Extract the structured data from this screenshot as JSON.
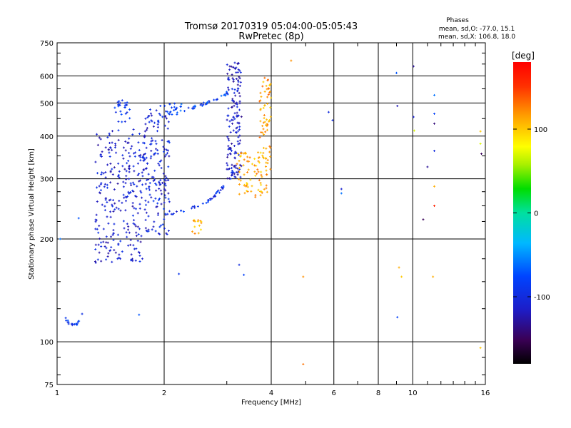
{
  "chart_data": {
    "type": "scatter",
    "title": "Tromsø 20170319 05:04:00-05:05:43",
    "subtitle": "RwPretec (8p)",
    "phases_box": {
      "title": "Phases",
      "line_o": "mean, sd,O: -77.0, 15.1",
      "line_x": "mean, sd,X: 106.8, 18.0"
    },
    "xlabel": "Frequency [MHz]",
    "ylabel": "Stationary phase Virtual Height [km]",
    "x_scale": "log",
    "y_scale": "log",
    "xlim": [
      1,
      16
    ],
    "ylim": [
      75,
      750
    ],
    "x_ticks": [
      {
        "v": 1,
        "label": "1"
      },
      {
        "v": 2,
        "label": "2"
      },
      {
        "v": 4,
        "label": "4"
      },
      {
        "v": 6,
        "label": "6"
      },
      {
        "v": 8,
        "label": "8"
      },
      {
        "v": 10,
        "label": "10"
      },
      {
        "v": 16,
        "label": "16"
      }
    ],
    "y_ticks": [
      {
        "v": 75,
        "label": "75"
      },
      {
        "v": 100,
        "label": "100"
      },
      {
        "v": 200,
        "label": "200"
      },
      {
        "v": 300,
        "label": "300"
      },
      {
        "v": 400,
        "label": "400"
      },
      {
        "v": 500,
        "label": "500"
      },
      {
        "v": 600,
        "label": "600"
      },
      {
        "v": 750,
        "label": "750"
      }
    ],
    "grid": true,
    "colorbar": {
      "label": "[deg]",
      "range": [
        -180,
        180
      ],
      "ticks": [
        {
          "v": 100,
          "label": "100"
        },
        {
          "v": 0,
          "label": "0"
        },
        {
          "v": -100,
          "label": "-100"
        }
      ]
    },
    "clusters": [
      {
        "name": "e_hook",
        "shape": "curve",
        "x": [
          1.05,
          1.06,
          1.08,
          1.1,
          1.12,
          1.14,
          1.16,
          1.18
        ],
        "y": [
          120,
          116,
          113,
          112,
          112,
          113,
          116,
          121
        ],
        "phase": -85,
        "n": 18
      },
      {
        "name": "low_f_cluster",
        "shape": "blob",
        "xr": [
          1.28,
          1.75
        ],
        "yr": [
          170,
          420
        ],
        "phase": -110,
        "n": 260
      },
      {
        "name": "mid_cluster",
        "shape": "blob",
        "xr": [
          1.75,
          2.08
        ],
        "yr": [
          205,
          480
        ],
        "phase": -105,
        "n": 170
      },
      {
        "name": "upper_arc_a",
        "shape": "blob",
        "xr": [
          1.45,
          1.6
        ],
        "yr": [
          440,
          510
        ],
        "phase": -90,
        "n": 26
      },
      {
        "name": "upper_arc_b",
        "shape": "blob",
        "xr": [
          1.95,
          2.3
        ],
        "yr": [
          460,
          500
        ],
        "phase": -80,
        "n": 24
      },
      {
        "name": "upper_arc_c",
        "shape": "curve",
        "x": [
          2.3,
          2.5,
          2.7,
          2.9,
          3.05
        ],
        "y": [
          478,
          490,
          505,
          520,
          540
        ],
        "phase": -82,
        "n": 30
      },
      {
        "name": "o_trace",
        "shape": "curve",
        "x": [
          2.0,
          2.3,
          2.6,
          2.8,
          3.0,
          3.15
        ],
        "y": [
          236,
          242,
          255,
          270,
          290,
          320
        ],
        "phase": -95,
        "n": 45
      },
      {
        "name": "o_cusp",
        "shape": "blob",
        "xr": [
          3.0,
          3.3
        ],
        "yr": [
          300,
          660
        ],
        "phase": -115,
        "n": 150
      },
      {
        "name": "x_trace",
        "shape": "blob",
        "xr": [
          3.2,
          3.9
        ],
        "yr": [
          265,
          360
        ],
        "phase": 110,
        "n": 80
      },
      {
        "name": "x_cusp",
        "shape": "blob",
        "xr": [
          3.7,
          4.0
        ],
        "yr": [
          330,
          600
        ],
        "phase": 115,
        "n": 60
      },
      {
        "name": "orange_patch",
        "shape": "blob",
        "xr": [
          2.4,
          2.55
        ],
        "yr": [
          205,
          228
        ],
        "phase": 110,
        "n": 14
      }
    ],
    "isolated_points": [
      {
        "x": 4.55,
        "y": 665,
        "phase": 120
      },
      {
        "x": 3.98,
        "y": 320,
        "phase": 120
      },
      {
        "x": 4.92,
        "y": 155,
        "phase": 120
      },
      {
        "x": 4.92,
        "y": 86,
        "phase": 130
      },
      {
        "x": 5.8,
        "y": 470,
        "phase": -100
      },
      {
        "x": 5.95,
        "y": 445,
        "phase": -100
      },
      {
        "x": 6.3,
        "y": 280,
        "phase": -110
      },
      {
        "x": 6.3,
        "y": 272,
        "phase": -60
      },
      {
        "x": 2.2,
        "y": 158,
        "phase": -90
      },
      {
        "x": 1.7,
        "y": 120,
        "phase": -70
      },
      {
        "x": 3.25,
        "y": 168,
        "phase": -100
      },
      {
        "x": 3.35,
        "y": 157,
        "phase": -80
      },
      {
        "x": 9.0,
        "y": 612,
        "phase": -70
      },
      {
        "x": 9.05,
        "y": 490,
        "phase": -120
      },
      {
        "x": 9.15,
        "y": 165,
        "phase": 110
      },
      {
        "x": 9.3,
        "y": 155,
        "phase": 100
      },
      {
        "x": 9.05,
        "y": 118,
        "phase": -80
      },
      {
        "x": 10.05,
        "y": 640,
        "phase": -130
      },
      {
        "x": 10.05,
        "y": 455,
        "phase": -110
      },
      {
        "x": 10.1,
        "y": 415,
        "phase": 70
      },
      {
        "x": 11.0,
        "y": 325,
        "phase": -130
      },
      {
        "x": 10.7,
        "y": 228,
        "phase": -150
      },
      {
        "x": 11.5,
        "y": 527,
        "phase": -60
      },
      {
        "x": 11.5,
        "y": 465,
        "phase": -80
      },
      {
        "x": 11.5,
        "y": 435,
        "phase": -140
      },
      {
        "x": 11.5,
        "y": 362,
        "phase": -100
      },
      {
        "x": 11.5,
        "y": 285,
        "phase": 110
      },
      {
        "x": 11.5,
        "y": 250,
        "phase": 160
      },
      {
        "x": 11.4,
        "y": 155,
        "phase": 110
      },
      {
        "x": 15.5,
        "y": 413,
        "phase": 100
      },
      {
        "x": 15.5,
        "y": 380,
        "phase": 70
      },
      {
        "x": 15.6,
        "y": 355,
        "phase": -150
      },
      {
        "x": 15.5,
        "y": 96,
        "phase": 100
      },
      {
        "x": 1.15,
        "y": 230,
        "phase": -70
      },
      {
        "x": 1.02,
        "y": 200,
        "phase": -60
      }
    ]
  }
}
